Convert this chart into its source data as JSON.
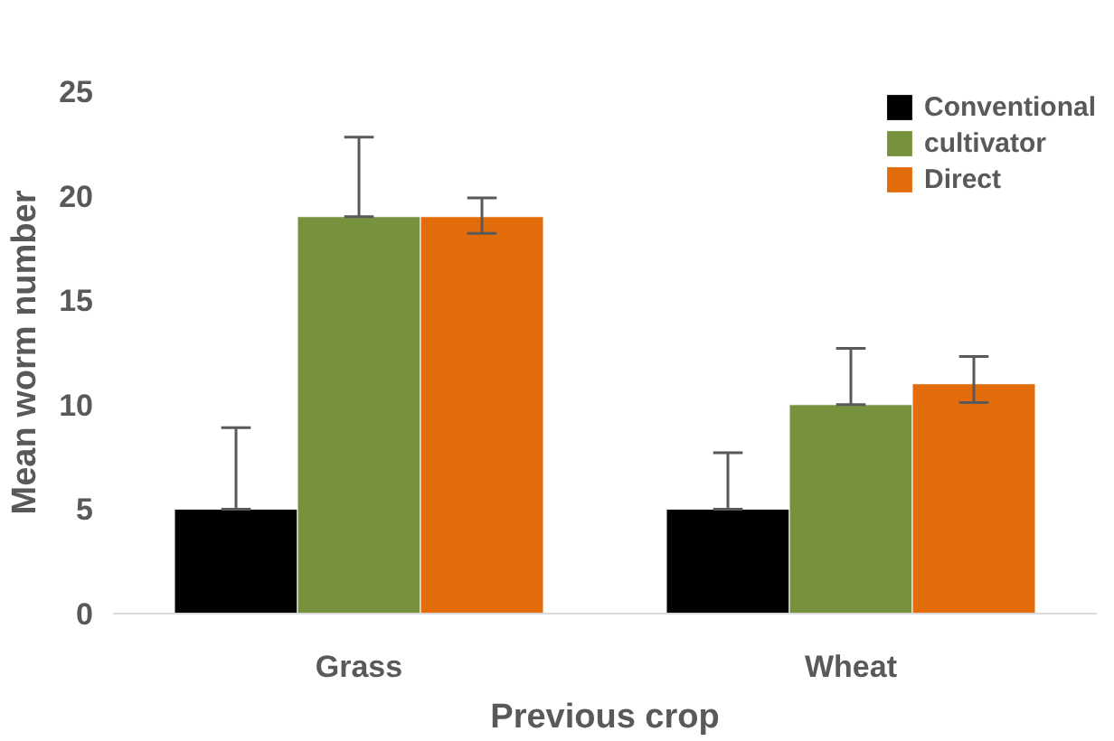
{
  "chart_data": {
    "type": "bar",
    "xlabel": "Previous crop",
    "ylabel": "Mean worm number",
    "categories": [
      "Grass",
      "Wheat"
    ],
    "series": [
      {
        "name": "Conventional",
        "color": "#000000",
        "values": [
          5,
          5
        ],
        "errors": [
          [
            5,
            8.9
          ],
          [
            5,
            7.7
          ]
        ]
      },
      {
        "name": "cultivator",
        "color": "#77923c",
        "values": [
          19,
          10
        ],
        "errors": [
          [
            19,
            22.8
          ],
          [
            10,
            12.7
          ]
        ]
      },
      {
        "name": "Direct",
        "color": "#e36c0a",
        "values": [
          19,
          11
        ],
        "errors": [
          [
            18.2,
            19.9
          ],
          [
            10.1,
            12.3
          ]
        ]
      }
    ],
    "ylim": [
      0,
      25
    ],
    "yticks": [
      0,
      5,
      10,
      15,
      20,
      25
    ],
    "grid": false,
    "legend": "top right"
  }
}
